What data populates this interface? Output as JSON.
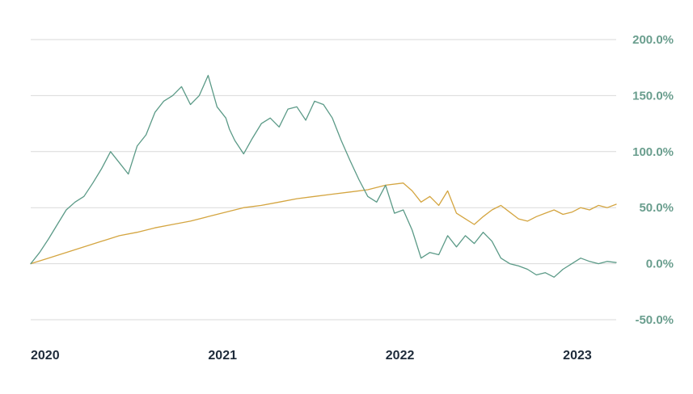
{
  "chart_data": {
    "type": "line",
    "title": "",
    "xlabel": "",
    "ylabel": "",
    "ylim": [
      -50,
      200
    ],
    "y_ticks": [
      {
        "value": 200,
        "label": "200.0%"
      },
      {
        "value": 150,
        "label": "150.0%"
      },
      {
        "value": 100,
        "label": "100.0%"
      },
      {
        "value": 50,
        "label": "50.0%"
      },
      {
        "value": 0,
        "label": "0.0%"
      },
      {
        "value": -50,
        "label": "-50.0%"
      }
    ],
    "y_axis_side": "right",
    "x_ticks": [
      {
        "value": 2020.0,
        "label": "2020"
      },
      {
        "value": 2021.0,
        "label": "2021"
      },
      {
        "value": 2022.0,
        "label": "2022"
      },
      {
        "value": 2023.0,
        "label": "2023"
      }
    ],
    "xlim": [
      2020.0,
      2023.3
    ],
    "grid": "horizontal",
    "legend": "none",
    "series": [
      {
        "color": "#5b9a87",
        "x": [
          2020.0,
          2020.05,
          2020.1,
          2020.15,
          2020.2,
          2020.25,
          2020.3,
          2020.35,
          2020.4,
          2020.45,
          2020.5,
          2020.55,
          2020.6,
          2020.65,
          2020.7,
          2020.75,
          2020.8,
          2020.85,
          2020.9,
          2020.95,
          2021.0,
          2021.05,
          2021.1,
          2021.12,
          2021.15,
          2021.2,
          2021.25,
          2021.3,
          2021.35,
          2021.4,
          2021.45,
          2021.5,
          2021.55,
          2021.6,
          2021.65,
          2021.7,
          2021.75,
          2021.8,
          2021.85,
          2021.9,
          2021.95,
          2022.0,
          2022.05,
          2022.1,
          2022.15,
          2022.2,
          2022.25,
          2022.3,
          2022.35,
          2022.4,
          2022.45,
          2022.5,
          2022.55,
          2022.6,
          2022.65,
          2022.7,
          2022.75,
          2022.8,
          2022.85,
          2022.9,
          2022.95,
          2023.0,
          2023.05,
          2023.1,
          2023.15,
          2023.2,
          2023.25,
          2023.3
        ],
        "values": [
          0,
          10,
          22,
          35,
          48,
          55,
          60,
          72,
          85,
          100,
          90,
          80,
          105,
          115,
          135,
          145,
          150,
          158,
          142,
          150,
          168,
          140,
          130,
          120,
          110,
          98,
          112,
          125,
          130,
          122,
          138,
          140,
          128,
          145,
          142,
          130,
          110,
          92,
          75,
          60,
          55,
          70,
          45,
          48,
          30,
          5,
          10,
          8,
          25,
          15,
          25,
          18,
          28,
          20,
          5,
          0,
          -2,
          -5,
          -10,
          -8,
          -12,
          -5,
          0,
          5,
          2,
          0,
          2,
          1
        ]
      },
      {
        "color": "#d4a540",
        "x": [
          2020.0,
          2020.1,
          2020.2,
          2020.3,
          2020.4,
          2020.5,
          2020.6,
          2020.7,
          2020.8,
          2020.9,
          2021.0,
          2021.1,
          2021.2,
          2021.3,
          2021.4,
          2021.5,
          2021.6,
          2021.7,
          2021.8,
          2021.9,
          2022.0,
          2022.1,
          2022.15,
          2022.2,
          2022.25,
          2022.3,
          2022.35,
          2022.4,
          2022.45,
          2022.5,
          2022.55,
          2022.6,
          2022.65,
          2022.7,
          2022.75,
          2022.8,
          2022.85,
          2022.9,
          2022.95,
          2023.0,
          2023.05,
          2023.1,
          2023.15,
          2023.2,
          2023.25,
          2023.3
        ],
        "values": [
          0,
          5,
          10,
          15,
          20,
          25,
          28,
          32,
          35,
          38,
          42,
          46,
          50,
          52,
          55,
          58,
          60,
          62,
          64,
          66,
          70,
          72,
          65,
          55,
          60,
          52,
          65,
          45,
          40,
          35,
          42,
          48,
          52,
          46,
          40,
          38,
          42,
          45,
          48,
          44,
          46,
          50,
          48,
          52,
          50,
          53
        ]
      }
    ]
  }
}
